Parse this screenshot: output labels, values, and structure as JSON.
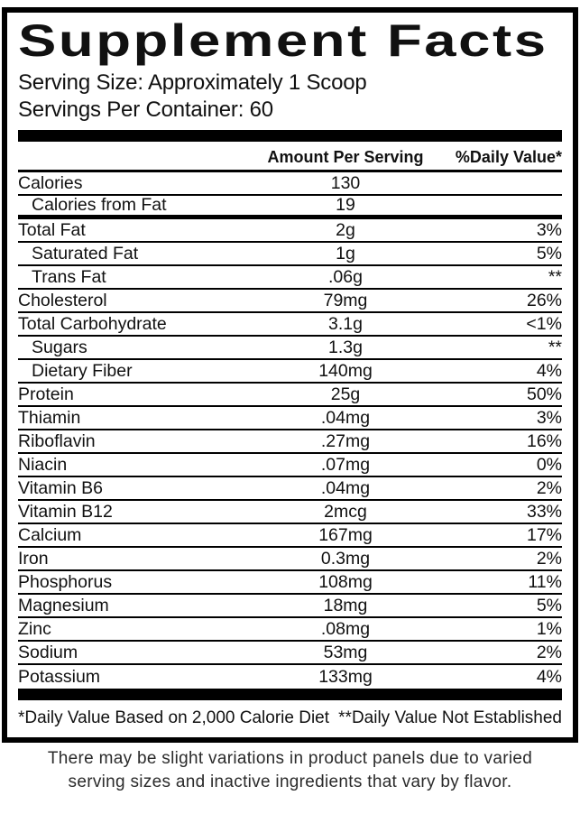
{
  "label": {
    "title": "Supplement Facts",
    "serving_size": "Serving Size: Approximately 1 Scoop",
    "servings_per_container": "Servings Per Container: 60",
    "header": {
      "amount": "Amount Per Serving",
      "daily_value": "%Daily Value*"
    },
    "rows": [
      {
        "name": "Calories",
        "amount": "130",
        "dv": "",
        "indent": false,
        "sep": "thin"
      },
      {
        "name": "Calories from Fat",
        "amount": "19",
        "dv": "",
        "indent": true,
        "sep": "thick"
      },
      {
        "name": "Total Fat",
        "amount": "2g",
        "dv": "3%",
        "indent": false,
        "sep": "thin"
      },
      {
        "name": "Saturated Fat",
        "amount": "1g",
        "dv": "5%",
        "indent": true,
        "sep": "thin"
      },
      {
        "name": "Trans Fat",
        "amount": ".06g",
        "dv": "**",
        "indent": true,
        "sep": "thin"
      },
      {
        "name": "Cholesterol",
        "amount": "79mg",
        "dv": "26%",
        "indent": false,
        "sep": "thin"
      },
      {
        "name": "Total Carbohydrate",
        "amount": "3.1g",
        "dv": "<1%",
        "indent": false,
        "sep": "thin"
      },
      {
        "name": "Sugars",
        "amount": "1.3g",
        "dv": "**",
        "indent": true,
        "sep": "thin"
      },
      {
        "name": "Dietary Fiber",
        "amount": "140mg",
        "dv": "4%",
        "indent": true,
        "sep": "thin"
      },
      {
        "name": "Protein",
        "amount": "25g",
        "dv": "50%",
        "indent": false,
        "sep": "thin"
      },
      {
        "name": "Thiamin",
        "amount": ".04mg",
        "dv": "3%",
        "indent": false,
        "sep": "thin"
      },
      {
        "name": "Riboflavin",
        "amount": ".27mg",
        "dv": "16%",
        "indent": false,
        "sep": "thin"
      },
      {
        "name": "Niacin",
        "amount": ".07mg",
        "dv": "0%",
        "indent": false,
        "sep": "thin"
      },
      {
        "name": "Vitamin B6",
        "amount": ".04mg",
        "dv": "2%",
        "indent": false,
        "sep": "thin"
      },
      {
        "name": "Vitamin B12",
        "amount": "2mcg",
        "dv": "33%",
        "indent": false,
        "sep": "thin"
      },
      {
        "name": "Calcium",
        "amount": "167mg",
        "dv": "17%",
        "indent": false,
        "sep": "thin"
      },
      {
        "name": "Iron",
        "amount": "0.3mg",
        "dv": "2%",
        "indent": false,
        "sep": "thin"
      },
      {
        "name": "Phosphorus",
        "amount": "108mg",
        "dv": "11%",
        "indent": false,
        "sep": "thin"
      },
      {
        "name": "Magnesium",
        "amount": "18mg",
        "dv": "5%",
        "indent": false,
        "sep": "thin"
      },
      {
        "name": "Zinc",
        "amount": ".08mg",
        "dv": "1%",
        "indent": false,
        "sep": "thin"
      },
      {
        "name": "Sodium",
        "amount": "53mg",
        "dv": "2%",
        "indent": false,
        "sep": "thin"
      },
      {
        "name": "Potassium",
        "amount": "133mg",
        "dv": "4%",
        "indent": false,
        "sep": "none"
      }
    ],
    "footnotes": {
      "left": "*Daily Value Based on 2,000 Calorie Diet",
      "right": "**Daily Value Not Established"
    },
    "disclaimer_lines": [
      "There may be slight variations in product panels due to varied",
      "serving sizes and inactive ingredients that vary by flavor."
    ],
    "colors": {
      "text": "#111111",
      "border": "#000000",
      "background": "#ffffff"
    }
  }
}
